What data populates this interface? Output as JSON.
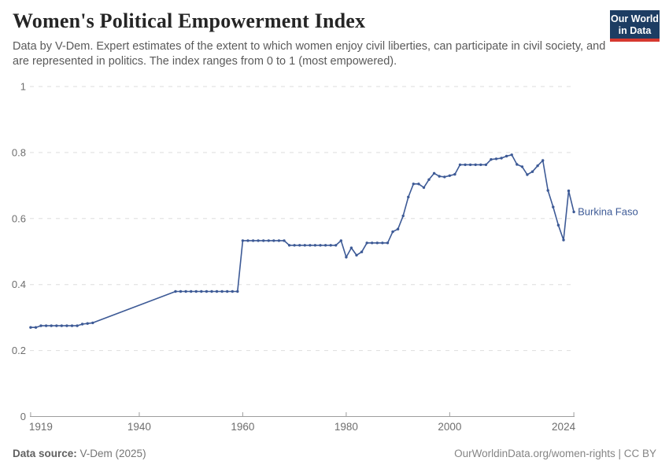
{
  "header": {
    "title": "Women's Political Empowerment Index",
    "subtitle": "Data by V-Dem. Expert estimates of the extent to which women enjoy civil liberties, can participate in civil society, and are represented in politics. The index ranges from 0 to 1 (most empowered).",
    "logo": {
      "line1": "Our World",
      "line2": "in Data",
      "bg_color": "#1d3d63",
      "stripe_color": "#d6382f"
    }
  },
  "chart_data": {
    "type": "line",
    "title": "Women's Political Empowerment Index",
    "xlabel": "",
    "ylabel": "",
    "xlim": [
      1919,
      2024
    ],
    "ylim": [
      0,
      1
    ],
    "yticks": [
      0,
      0.2,
      0.4,
      0.6,
      0.8,
      1
    ],
    "xticks": [
      1919,
      1940,
      1960,
      1980,
      2000,
      2024
    ],
    "grid": "horizontal-dashed",
    "legend_position": "end-of-line-label",
    "colors": {
      "line": "#3d5a96",
      "grid": "#dedede",
      "axis": "#9e9e9e",
      "tick_text": "#6e6e6e"
    },
    "series": [
      {
        "name": "Burkina Faso",
        "color": "#3d5a96",
        "points": [
          [
            1919,
            0.27
          ],
          [
            1920,
            0.27
          ],
          [
            1921,
            0.275
          ],
          [
            1922,
            0.275
          ],
          [
            1923,
            0.275
          ],
          [
            1924,
            0.275
          ],
          [
            1925,
            0.275
          ],
          [
            1926,
            0.275
          ],
          [
            1927,
            0.275
          ],
          [
            1928,
            0.275
          ],
          [
            1929,
            0.28
          ],
          [
            1930,
            0.282
          ],
          [
            1931,
            0.284
          ],
          [
            1947,
            0.379
          ],
          [
            1948,
            0.379
          ],
          [
            1949,
            0.379
          ],
          [
            1950,
            0.379
          ],
          [
            1951,
            0.379
          ],
          [
            1952,
            0.379
          ],
          [
            1953,
            0.379
          ],
          [
            1954,
            0.379
          ],
          [
            1955,
            0.379
          ],
          [
            1956,
            0.379
          ],
          [
            1957,
            0.379
          ],
          [
            1958,
            0.379
          ],
          [
            1959,
            0.379
          ],
          [
            1960,
            0.533
          ],
          [
            1961,
            0.533
          ],
          [
            1962,
            0.533
          ],
          [
            1963,
            0.533
          ],
          [
            1964,
            0.533
          ],
          [
            1965,
            0.533
          ],
          [
            1966,
            0.533
          ],
          [
            1967,
            0.533
          ],
          [
            1968,
            0.533
          ],
          [
            1969,
            0.519
          ],
          [
            1970,
            0.519
          ],
          [
            1971,
            0.519
          ],
          [
            1972,
            0.519
          ],
          [
            1973,
            0.519
          ],
          [
            1974,
            0.519
          ],
          [
            1975,
            0.519
          ],
          [
            1976,
            0.519
          ],
          [
            1977,
            0.519
          ],
          [
            1978,
            0.519
          ],
          [
            1979,
            0.533
          ],
          [
            1980,
            0.483
          ],
          [
            1981,
            0.511
          ],
          [
            1982,
            0.489
          ],
          [
            1983,
            0.499
          ],
          [
            1984,
            0.526
          ],
          [
            1985,
            0.526
          ],
          [
            1986,
            0.526
          ],
          [
            1987,
            0.526
          ],
          [
            1988,
            0.526
          ],
          [
            1989,
            0.56
          ],
          [
            1990,
            0.568
          ],
          [
            1991,
            0.608
          ],
          [
            1992,
            0.665
          ],
          [
            1993,
            0.705
          ],
          [
            1994,
            0.705
          ],
          [
            1995,
            0.694
          ],
          [
            1996,
            0.718
          ],
          [
            1997,
            0.737
          ],
          [
            1998,
            0.728
          ],
          [
            1999,
            0.726
          ],
          [
            2000,
            0.73
          ],
          [
            2001,
            0.734
          ],
          [
            2002,
            0.763
          ],
          [
            2003,
            0.763
          ],
          [
            2004,
            0.763
          ],
          [
            2005,
            0.763
          ],
          [
            2006,
            0.763
          ],
          [
            2007,
            0.763
          ],
          [
            2008,
            0.779
          ],
          [
            2009,
            0.781
          ],
          [
            2010,
            0.783
          ],
          [
            2011,
            0.789
          ],
          [
            2012,
            0.793
          ],
          [
            2013,
            0.764
          ],
          [
            2014,
            0.757
          ],
          [
            2015,
            0.733
          ],
          [
            2016,
            0.742
          ],
          [
            2017,
            0.76
          ],
          [
            2018,
            0.776
          ],
          [
            2019,
            0.685
          ],
          [
            2020,
            0.635
          ],
          [
            2021,
            0.58
          ],
          [
            2022,
            0.535
          ],
          [
            2023,
            0.684
          ],
          [
            2024,
            0.62
          ]
        ]
      }
    ]
  },
  "footer": {
    "source_label": "Data source:",
    "source_value": " V-Dem (2025)",
    "credit": "OurWorldinData.org/women-rights | CC BY"
  }
}
